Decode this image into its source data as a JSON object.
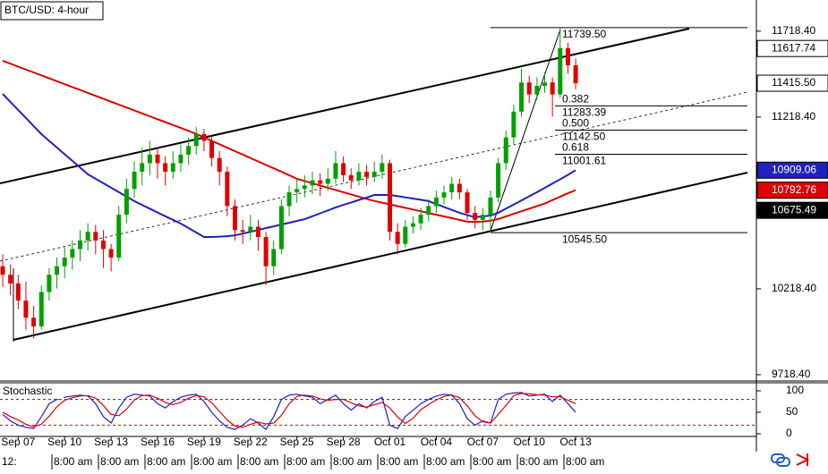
{
  "chart_data": {
    "type": "candlestick",
    "title": "BTC/USD: 4-hour",
    "categories": [
      null,
      null,
      "Sep 07",
      null,
      null,
      null,
      null,
      null,
      "Sep 10",
      null,
      null,
      null,
      null,
      null,
      "Sep 13",
      null,
      null,
      null,
      null,
      null,
      "Sep 16",
      null,
      null,
      null,
      null,
      null,
      "Sep 19",
      null,
      null,
      null,
      null,
      null,
      "Sep 22",
      null,
      null,
      null,
      null,
      null,
      "Sep 25",
      null,
      null,
      null,
      null,
      null,
      "Sep 28",
      null,
      null,
      null,
      null,
      null,
      "Oct 01",
      null,
      null,
      null,
      null,
      null,
      "Oct 04",
      null,
      null,
      null,
      null,
      null,
      "Oct 07",
      null,
      null,
      null,
      null,
      null,
      "Oct 10",
      null,
      null,
      null,
      null,
      null,
      "Oct 13"
    ],
    "time_labels": [
      "12:",
      "8:00 am",
      "8:00 am",
      "8:00 am",
      "8:00 am",
      "8:00 am",
      "8:00 am",
      "8:00 am",
      "8:00 am",
      "8:00 am",
      "8:00 am",
      "8:00 am",
      "8:00 am"
    ],
    "open": [
      10350,
      10300,
      10250,
      10150,
      10050,
      10000,
      10200,
      10300,
      10350,
      10400,
      10450,
      10500,
      10550,
      10500,
      10450,
      10400,
      10650,
      10800,
      10900,
      10950,
      11000,
      10950,
      10900,
      10950,
      11000,
      11050,
      11120,
      11080,
      10980,
      10900,
      10700,
      10560,
      10550,
      10580,
      10520,
      10350,
      10450,
      10700,
      10780,
      10800,
      10820,
      10850,
      10830,
      10860,
      10950,
      10880,
      10850,
      10900,
      10870,
      10900,
      10950,
      10550,
      10480,
      10580,
      10600,
      10650,
      10700,
      10750,
      10780,
      10830,
      10780,
      10660,
      10620,
      10650,
      10750,
      10950,
      11100,
      11250,
      11420,
      11350,
      11400,
      11420,
      11350,
      11620,
      11520
    ],
    "high": [
      10420,
      10360,
      10300,
      10260,
      10120,
      10240,
      10340,
      10400,
      10460,
      10500,
      10560,
      10600,
      10590,
      10560,
      10480,
      10700,
      10860,
      10960,
      11040,
      11080,
      11040,
      10990,
      11020,
      11060,
      11100,
      11160,
      11150,
      11110,
      11020,
      10930,
      10740,
      10620,
      10650,
      10620,
      10550,
      10500,
      10740,
      10820,
      10860,
      10880,
      10900,
      10890,
      10920,
      11020,
      10990,
      10920,
      10950,
      10940,
      10960,
      11000,
      10970,
      10600,
      10620,
      10640,
      10690,
      10740,
      10790,
      10820,
      10870,
      10860,
      10800,
      10700,
      10690,
      10790,
      10980,
      11140,
      11290,
      11500,
      11460,
      11450,
      11480,
      11450,
      11739.5,
      11650,
      11560
    ],
    "low": [
      10230,
      10180,
      10100,
      9980,
      9930,
      9980,
      10150,
      10220,
      10280,
      10330,
      10380,
      10440,
      10420,
      10340,
      10320,
      10380,
      10600,
      10750,
      10820,
      10880,
      10860,
      10820,
      10860,
      10900,
      10940,
      11000,
      11020,
      10930,
      10820,
      10640,
      10500,
      10480,
      10500,
      10440,
      10240,
      10300,
      10420,
      10640,
      10720,
      10750,
      10770,
      10760,
      10790,
      10830,
      10840,
      10800,
      10820,
      10820,
      10840,
      10860,
      10500,
      10420,
      10460,
      10540,
      10560,
      10610,
      10660,
      10710,
      10740,
      10740,
      10620,
      10570,
      10560,
      10545.5,
      10720,
      10910,
      11060,
      11220,
      11300,
      11320,
      11360,
      11220,
      11330,
      11470,
      11380
    ],
    "close": [
      10300,
      10250,
      10150,
      10050,
      10000,
      10200,
      10300,
      10350,
      10400,
      10450,
      10500,
      10550,
      10500,
      10450,
      10400,
      10650,
      10800,
      10900,
      10950,
      11000,
      10950,
      10900,
      10950,
      11000,
      11050,
      11120,
      11080,
      10980,
      10900,
      10700,
      10560,
      10550,
      10580,
      10520,
      10350,
      10450,
      10700,
      10780,
      10800,
      10820,
      10850,
      10830,
      10860,
      10950,
      10880,
      10850,
      10900,
      10870,
      10900,
      10950,
      10550,
      10480,
      10580,
      10600,
      10650,
      10700,
      10750,
      10780,
      10830,
      10780,
      10660,
      10620,
      10650,
      10750,
      10950,
      11100,
      11250,
      11420,
      11350,
      11400,
      11420,
      11350,
      11620,
      11520,
      11415.5
    ],
    "up_color": "#00a000",
    "down_color": "#e00000",
    "ylim": [
      9687,
      11900
    ],
    "yticks": [
      {
        "value": 11718.4,
        "label": "11718.40"
      },
      {
        "value": 11218.4,
        "label": "11218.40"
      },
      {
        "value": 10218.4,
        "label": "10218.40"
      },
      {
        "value": 9718.4,
        "label": "9718.40"
      }
    ],
    "moving_averages": [
      {
        "color": "#e00000",
        "values": [
          11546,
          11529,
          11512,
          11495,
          11478,
          11461,
          11444,
          11427,
          11410,
          11393,
          11376,
          11359,
          11342,
          11325,
          11308,
          11291,
          11274,
          11257,
          11240,
          11223,
          11206,
          11189,
          11172,
          11155,
          11138,
          11120,
          11100,
          11080,
          11060,
          11040,
          11020,
          11000,
          10980,
          10960,
          10940,
          10920,
          10900,
          10880,
          10859,
          10846,
          10833,
          10820,
          10807,
          10794,
          10781,
          10768,
          10755,
          10742,
          10730,
          10720,
          10710,
          10700,
          10690,
          10680,
          10670,
          10660,
          10650,
          10640,
          10630,
          10620,
          10609,
          10608,
          10610,
          10615,
          10625,
          10640,
          10655,
          10670,
          10685,
          10700,
          10715,
          10735,
          10755,
          10775,
          10792.76
        ]
      },
      {
        "color": "#2020c0",
        "values": [
          11353,
          11306,
          11260,
          11213,
          11166,
          11119,
          11080,
          11041,
          11002,
          10963,
          10924,
          10885,
          10859,
          10833,
          10807,
          10781,
          10755,
          10729,
          10707,
          10685,
          10663,
          10641,
          10620,
          10598,
          10572,
          10546,
          10520,
          10520,
          10522,
          10525,
          10530,
          10540,
          10550,
          10561,
          10572,
          10582,
          10593,
          10603,
          10614,
          10624,
          10641,
          10658,
          10675,
          10692,
          10707,
          10721,
          10736,
          10750,
          10765,
          10765,
          10765,
          10758,
          10751,
          10744,
          10737,
          10729,
          10712,
          10695,
          10678,
          10661,
          10648,
          10635,
          10640,
          10645,
          10661,
          10685,
          10709,
          10733,
          10757,
          10781,
          10806,
          10831,
          10856,
          10882,
          10909.06
        ]
      }
    ],
    "fib_levels": [
      {
        "price": {
          "value": 11739.5,
          "label": "11739.50"
        }
      },
      {
        "ratio": "0.382",
        "price": 11283.39
      },
      {
        "ratio": "0.500",
        "price": {
          "value": 11142.5,
          "label": "11142.50"
        }
      },
      {
        "ratio": "0.618",
        "price": 11001.61
      },
      {
        "price": {
          "value": 10545.5,
          "label": "10545.50"
        }
      }
    ],
    "price_markers": [
      {
        "price": 11617.74,
        "bg": "#ffffff",
        "fg": "#000000"
      },
      {
        "price": {
          "value": 11415.5,
          "label": "11415.50"
        },
        "bg": "#ffffff",
        "fg": "#000000"
      },
      {
        "price": 10909.06,
        "bg": "#2020c0",
        "fg": "#ffffff"
      },
      {
        "price": 10792.76,
        "bg": "#e00000",
        "fg": "#ffffff"
      },
      {
        "price": 10675.49,
        "bg": "#000000",
        "fg": "#ffffff"
      }
    ],
    "stochastic": {
      "type": "line",
      "title": "Stochastic",
      "ylim": [
        0,
        100
      ],
      "yticks": [
        100,
        50,
        0
      ],
      "levels": [
        {
          "value": 80,
          "color": "#2020c0"
        },
        {
          "value": 20,
          "color": "#e00000"
        }
      ],
      "series": [
        {
          "color": "#2020c0",
          "values": [
            45,
            30,
            20,
            15,
            12,
            40,
            70,
            80,
            85,
            88,
            90,
            88,
            70,
            40,
            25,
            60,
            85,
            92,
            90,
            88,
            70,
            60,
            75,
            85,
            90,
            92,
            75,
            50,
            30,
            15,
            10,
            20,
            35,
            25,
            10,
            40,
            80,
            90,
            92,
            88,
            85,
            70,
            80,
            90,
            70,
            55,
            70,
            60,
            75,
            85,
            20,
            12,
            40,
            55,
            70,
            80,
            88,
            92,
            90,
            70,
            35,
            20,
            30,
            25,
            80,
            92,
            95,
            96,
            88,
            90,
            92,
            75,
            90,
            70,
            50
          ]
        },
        {
          "color": "#e00000",
          "values": [
            50,
            40,
            32,
            22,
            16,
            22,
            41,
            63,
            78,
            84,
            88,
            89,
            83,
            66,
            45,
            42,
            57,
            79,
            89,
            90,
            83,
            73,
            68,
            73,
            83,
            89,
            86,
            72,
            52,
            32,
            18,
            15,
            22,
            27,
            23,
            25,
            43,
            70,
            87,
            90,
            88,
            81,
            78,
            80,
            80,
            72,
            65,
            62,
            68,
            73,
            60,
            39,
            24,
            36,
            56,
            68,
            79,
            87,
            90,
            84,
            65,
            42,
            28,
            25,
            45,
            66,
            89,
            94,
            93,
            91,
            90,
            86,
            86,
            78,
            70
          ]
        }
      ]
    }
  }
}
